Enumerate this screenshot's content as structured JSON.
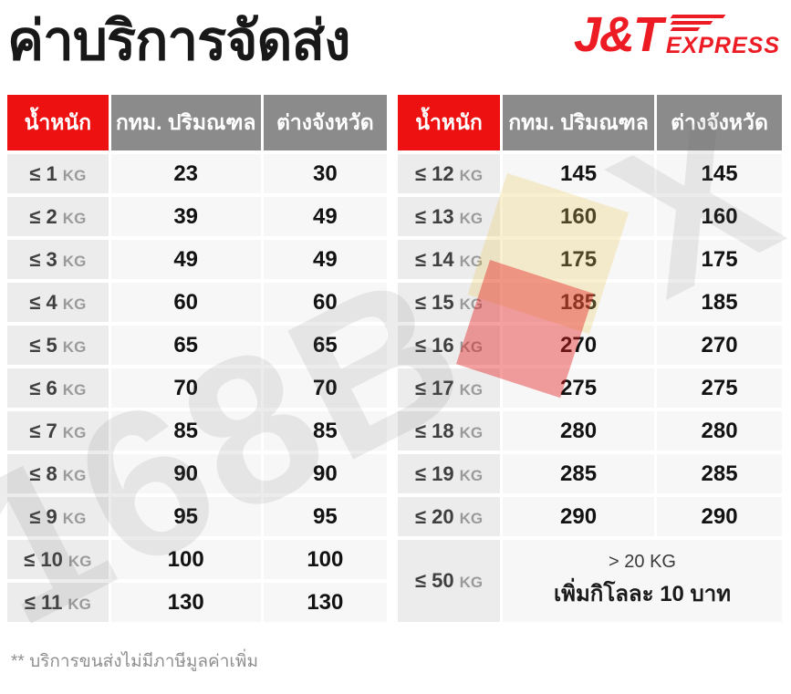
{
  "page": {
    "title": "ค่าบริการจัดส่ง",
    "footnote": "** บริการขนส่งไม่มีภาษีมูลค่าเพิ่ม"
  },
  "logo": {
    "brand": "J&T",
    "suffix": "EXPRESS",
    "color": "#ed1c24"
  },
  "colors": {
    "header_red": "#ee1111",
    "header_gray": "#8b8b8b",
    "weight_cell_bg": "#ececec",
    "value_cell_bg": "#f7f7f7"
  },
  "watermark": {
    "left": "168B",
    "right": "X"
  },
  "table": {
    "headers": [
      "น้ำหนัก",
      "กทม. ปริมณฑล",
      "ต่างจังหวัด"
    ],
    "left_rows": [
      {
        "weight": "≤ 1",
        "unit": "KG",
        "bkk": "23",
        "province": "30"
      },
      {
        "weight": "≤ 2",
        "unit": "KG",
        "bkk": "39",
        "province": "49"
      },
      {
        "weight": "≤ 3",
        "unit": "KG",
        "bkk": "49",
        "province": "49"
      },
      {
        "weight": "≤ 4",
        "unit": "KG",
        "bkk": "60",
        "province": "60"
      },
      {
        "weight": "≤ 5",
        "unit": "KG",
        "bkk": "65",
        "province": "65"
      },
      {
        "weight": "≤ 6",
        "unit": "KG",
        "bkk": "70",
        "province": "70"
      },
      {
        "weight": "≤ 7",
        "unit": "KG",
        "bkk": "85",
        "province": "85"
      },
      {
        "weight": "≤ 8",
        "unit": "KG",
        "bkk": "90",
        "province": "90"
      },
      {
        "weight": "≤ 9",
        "unit": "KG",
        "bkk": "95",
        "province": "95"
      },
      {
        "weight": "≤ 10",
        "unit": "KG",
        "bkk": "100",
        "province": "100"
      },
      {
        "weight": "≤ 11",
        "unit": "KG",
        "bkk": "130",
        "province": "130"
      }
    ],
    "right_rows": [
      {
        "weight": "≤ 12",
        "unit": "KG",
        "bkk": "145",
        "province": "145"
      },
      {
        "weight": "≤ 13",
        "unit": "KG",
        "bkk": "160",
        "province": "160"
      },
      {
        "weight": "≤ 14",
        "unit": "KG",
        "bkk": "175",
        "province": "175"
      },
      {
        "weight": "≤ 15",
        "unit": "KG",
        "bkk": "185",
        "province": "185"
      },
      {
        "weight": "≤ 16",
        "unit": "KG",
        "bkk": "270",
        "province": "270"
      },
      {
        "weight": "≤ 17",
        "unit": "KG",
        "bkk": "275",
        "province": "275"
      },
      {
        "weight": "≤ 18",
        "unit": "KG",
        "bkk": "280",
        "province": "280"
      },
      {
        "weight": "≤ 19",
        "unit": "KG",
        "bkk": "285",
        "province": "285"
      },
      {
        "weight": "≤ 20",
        "unit": "KG",
        "bkk": "290",
        "province": "290"
      }
    ],
    "special_row": {
      "weight": "≤ 50",
      "unit": "KG",
      "line1": "> 20 KG",
      "line2": "เพิ่มกิโลละ 10 บาท"
    }
  }
}
